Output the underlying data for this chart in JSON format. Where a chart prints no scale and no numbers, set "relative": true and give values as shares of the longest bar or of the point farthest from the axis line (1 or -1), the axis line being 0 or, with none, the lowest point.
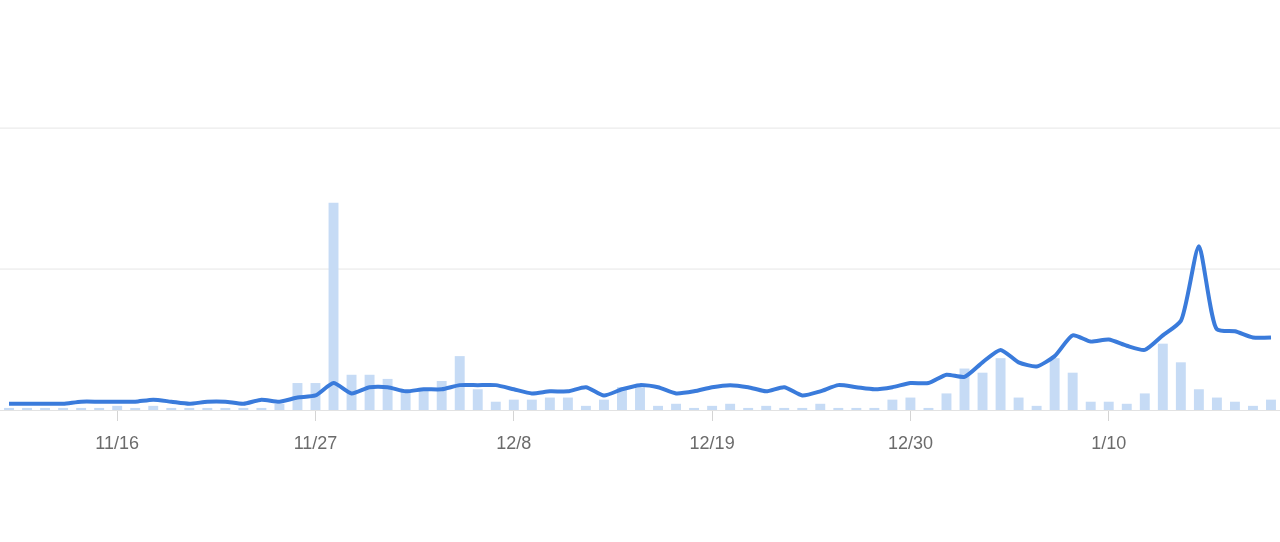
{
  "chart_data": {
    "type": "bar",
    "relative": true,
    "categories": [
      null,
      null,
      null,
      null,
      null,
      null,
      "11/16",
      null,
      null,
      null,
      null,
      null,
      null,
      null,
      null,
      null,
      null,
      "11/27",
      null,
      null,
      null,
      null,
      null,
      null,
      null,
      null,
      null,
      null,
      "12/8",
      null,
      null,
      null,
      null,
      null,
      null,
      null,
      null,
      null,
      null,
      "12/19",
      null,
      null,
      null,
      null,
      null,
      null,
      null,
      null,
      null,
      null,
      "12/30",
      null,
      null,
      null,
      null,
      null,
      null,
      null,
      null,
      null,
      null,
      "1/10",
      null,
      null,
      null,
      null,
      null,
      null,
      null,
      null,
      null
    ],
    "ref_lines": [
      {
        "axis": "y",
        "value": 0.68,
        "color": "#e6e6e6"
      },
      {
        "axis": "y",
        "value": 1.36,
        "color": "#e6e6e6"
      }
    ],
    "series": [
      {
        "color": "#c6dbf5",
        "values": [
          0.01,
          0.01,
          0.01,
          0.01,
          0.01,
          0.01,
          0.02,
          0.01,
          0.02,
          0.01,
          0.01,
          0.01,
          0.01,
          0.01,
          0.01,
          0.03,
          0.13,
          0.13,
          1,
          0.17,
          0.17,
          0.15,
          0.09,
          0.1,
          0.14,
          0.26,
          0.1,
          0.04,
          0.05,
          0.05,
          0.06,
          0.06,
          0.02,
          0.05,
          0.11,
          0.11,
          0.02,
          0.03,
          0.01,
          0.02,
          0.03,
          0.01,
          0.02,
          0.01,
          0.01,
          0.03,
          0.01,
          0.01,
          0.01,
          0.05,
          0.06,
          0.01,
          0.08,
          0.2,
          0.18,
          0.25,
          0.06,
          0.02,
          0.25,
          0.18,
          0.04,
          0.04,
          0.03,
          0.08,
          0.32,
          0.23,
          0.1,
          0.06,
          0.04,
          0.02,
          0.05
        ]
      },
      {
        "type": "line",
        "color": "#3a7bdb",
        "values": [
          0.03,
          0.03,
          0.03,
          0.03,
          0.04,
          0.04,
          0.04,
          0.04,
          0.05,
          0.04,
          0.03,
          0.04,
          0.04,
          0.03,
          0.05,
          0.04,
          0.06,
          0.07,
          0.13,
          0.08,
          0.11,
          0.11,
          0.09,
          0.1,
          0.1,
          0.12,
          0.12,
          0.12,
          0.1,
          0.08,
          0.09,
          0.09,
          0.11,
          0.07,
          0.1,
          0.12,
          0.11,
          0.08,
          0.09,
          0.11,
          0.12,
          0.11,
          0.09,
          0.11,
          0.07,
          0.09,
          0.12,
          0.11,
          0.1,
          0.11,
          0.13,
          0.13,
          0.17,
          0.16,
          0.23,
          0.29,
          0.23,
          0.21,
          0.26,
          0.36,
          0.33,
          0.34,
          0.31,
          0.29,
          0.36,
          0.43,
          0.79,
          0.39,
          0.38,
          0.35,
          0.35
        ]
      }
    ]
  }
}
